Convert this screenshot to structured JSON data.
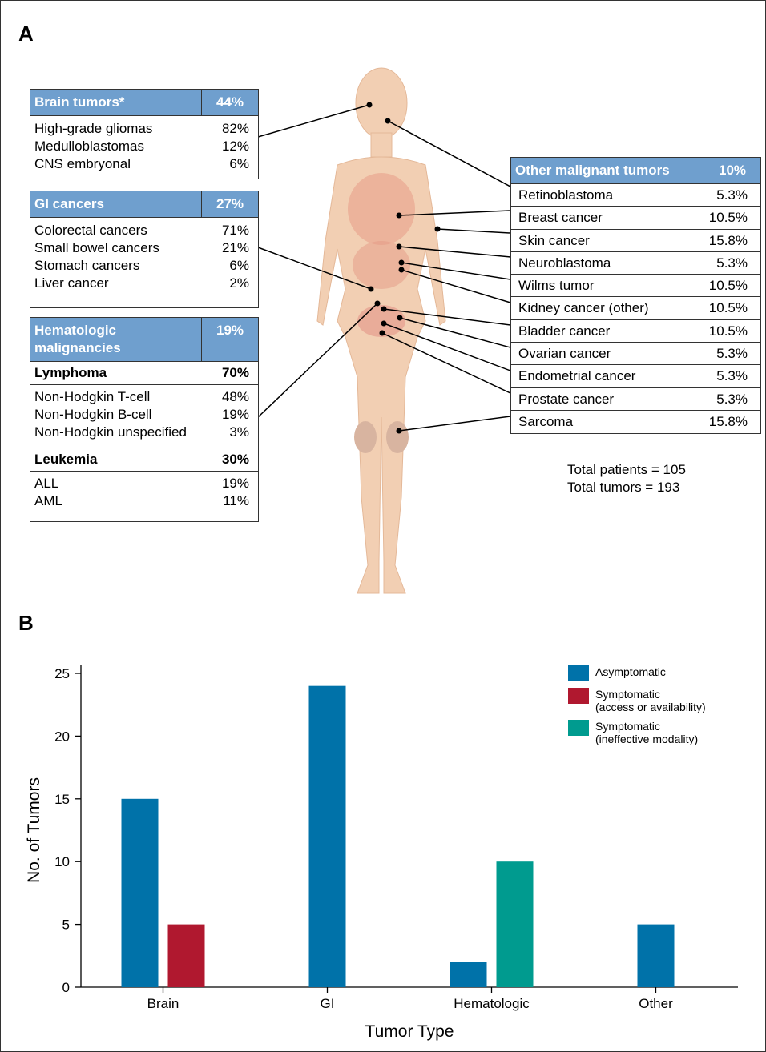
{
  "panel_a": {
    "label": "A",
    "brain": {
      "header": [
        "Brain tumors*",
        "44%"
      ],
      "rows": [
        [
          "High-grade gliomas",
          "82%"
        ],
        [
          "Medulloblastomas",
          "12%"
        ],
        [
          "CNS embryonal",
          "6%"
        ]
      ]
    },
    "gi": {
      "header": [
        "GI cancers",
        "27%"
      ],
      "rows": [
        [
          "Colorectal cancers",
          "71%"
        ],
        [
          "Small bowel cancers",
          "21%"
        ],
        [
          "Stomach cancers",
          "6%"
        ],
        [
          "Liver cancer",
          "2%"
        ]
      ]
    },
    "heme": {
      "header": [
        "Hematologic\nmalignancies",
        "19%"
      ],
      "groups": [
        {
          "header": [
            "Lymphoma",
            "70%"
          ],
          "rows": [
            [
              "Non-Hodgkin T-cell",
              "48%"
            ],
            [
              "Non-Hodgkin B-cell",
              "19%"
            ],
            [
              "Non-Hodgkin unspecified",
              "3%"
            ]
          ]
        },
        {
          "header": [
            "Leukemia",
            "30%"
          ],
          "rows": [
            [
              "ALL",
              "19%"
            ],
            [
              "AML",
              "11%"
            ]
          ]
        }
      ]
    },
    "other": {
      "header": [
        "Other malignant tumors",
        "10%"
      ],
      "rows": [
        [
          "Retinoblastoma",
          "5.3%"
        ],
        [
          "Breast cancer",
          "10.5%"
        ],
        [
          "Skin cancer",
          "15.8%"
        ],
        [
          "Neuroblastoma",
          "5.3%"
        ],
        [
          "Wilms tumor",
          "10.5%"
        ],
        [
          "Kidney cancer (other)",
          "10.5%"
        ],
        [
          "Bladder cancer",
          "10.5%"
        ],
        [
          "Ovarian cancer",
          "5.3%"
        ],
        [
          "Endometrial cancer",
          "5.3%"
        ],
        [
          "Prostate cancer",
          "5.3%"
        ],
        [
          "Sarcoma",
          "15.8%"
        ]
      ]
    },
    "totals": [
      "Total patients = 105",
      "Total tumors = 193"
    ]
  },
  "chart_data": {
    "type": "bar",
    "panel_label": "B",
    "x_label": "Tumor Type",
    "y_label": "No. of Tumors",
    "categories": [
      "Brain",
      "GI",
      "Hematologic",
      "Other"
    ],
    "series": [
      {
        "name": "Asymptomatic",
        "color": "#0072a9",
        "values": [
          15,
          24,
          2,
          5
        ]
      },
      {
        "name": "Symptomatic\n(access or availability)",
        "color": "#b0182f",
        "values": [
          5,
          null,
          null,
          null
        ]
      },
      {
        "name": "Symptomatic\n(ineffective modality)",
        "color": "#009b8f",
        "values": [
          null,
          null,
          10,
          null
        ]
      }
    ],
    "ylim": [
      0,
      25
    ],
    "yticks": [
      0,
      5,
      10,
      15,
      20,
      25
    ],
    "grid": false
  }
}
